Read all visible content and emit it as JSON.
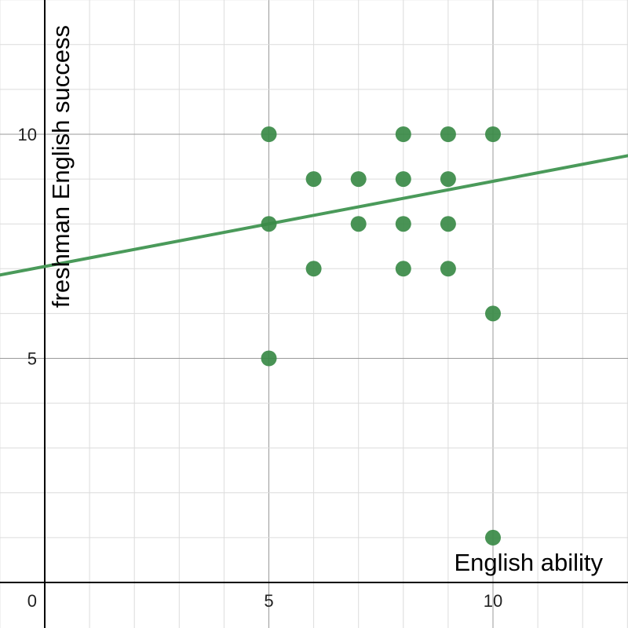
{
  "chart_data": {
    "type": "scatter",
    "title": "",
    "xlabel": "English ability",
    "ylabel": "freshman English success",
    "xlim": [
      -1,
      13
    ],
    "ylim": [
      0,
      13
    ],
    "grid": true,
    "x_ticks": [
      0,
      5,
      10
    ],
    "y_ticks": [
      5,
      10
    ],
    "colors": {
      "point": "#3a8a47",
      "line": "#4a9a5a"
    },
    "points": [
      {
        "x": 5,
        "y": 10
      },
      {
        "x": 5,
        "y": 8
      },
      {
        "x": 5,
        "y": 5
      },
      {
        "x": 6,
        "y": 9
      },
      {
        "x": 6,
        "y": 7
      },
      {
        "x": 7,
        "y": 9
      },
      {
        "x": 7,
        "y": 8
      },
      {
        "x": 8,
        "y": 10
      },
      {
        "x": 8,
        "y": 9
      },
      {
        "x": 8,
        "y": 8
      },
      {
        "x": 8,
        "y": 7
      },
      {
        "x": 9,
        "y": 10
      },
      {
        "x": 9,
        "y": 9
      },
      {
        "x": 9,
        "y": 8
      },
      {
        "x": 9,
        "y": 7
      },
      {
        "x": 10,
        "y": 10
      },
      {
        "x": 10,
        "y": 6
      },
      {
        "x": 10,
        "y": 1
      }
    ],
    "trendline": {
      "slope": 0.19,
      "intercept": 7.05
    }
  }
}
